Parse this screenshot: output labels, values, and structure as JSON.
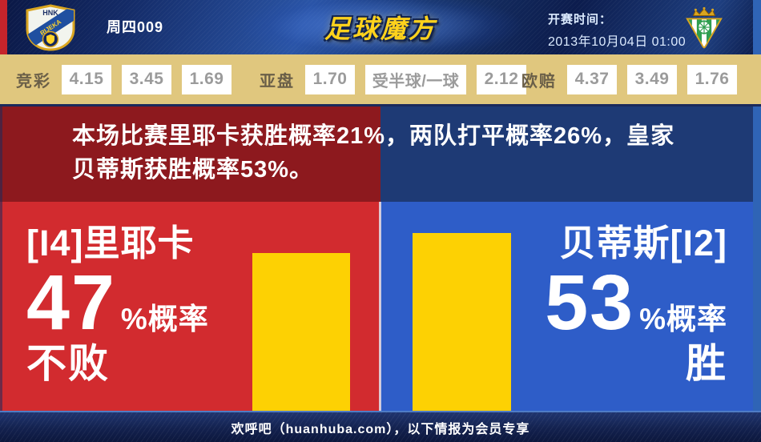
{
  "header": {
    "home_crest": {
      "name": "HNK Rijeka",
      "top_text": "HNK",
      "band_text": "RIJEKA"
    },
    "match_number": "周四009",
    "site_logo_text": "足球魔方",
    "kickoff_label": "开赛时间：",
    "kickoff_datetime": "2013年10月04日 01:00",
    "away_crest": {
      "name": "Real Betis"
    }
  },
  "odds": {
    "jingcai_label": "竞彩",
    "jingcai": [
      "4.15",
      "3.45",
      "1.69"
    ],
    "yapan_label": "亚盘",
    "yapan_home": "1.70",
    "yapan_handicap": "受半球/一球",
    "yapan_away": "2.12",
    "oupei_label": "欧赔",
    "oupei": [
      "4.37",
      "3.49",
      "1.76"
    ]
  },
  "summary": {
    "line1": "本场比赛里耶卡获胜概率21%，两队打平概率26%，皇家",
    "line2": "贝蒂斯获胜概率53%。"
  },
  "prediction": {
    "home": {
      "team": "[I4]里耶卡",
      "percent": "47",
      "suffix": "%概率",
      "outcome": "不败",
      "bar_percent": 47
    },
    "away": {
      "team": "贝蒂斯[I2]",
      "percent": "53",
      "suffix": "%概率",
      "outcome": "胜",
      "bar_percent": 53
    }
  },
  "footer": {
    "text": "欢呼吧（huanhuba.com），以下情报为会员专享"
  },
  "colors": {
    "home_dark": "#8d191e",
    "home_bright": "#d22b2f",
    "away_dark": "#1e3a75",
    "away_bright": "#2e5dc8",
    "bar_yellow": "#fdd103",
    "odds_bg": "#e0c77e",
    "header_navy": "#132a66",
    "logo_gold": "#ffd21c"
  }
}
